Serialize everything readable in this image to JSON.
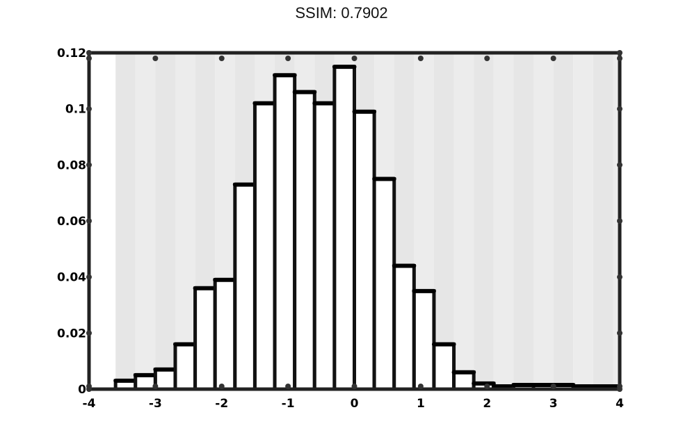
{
  "chart_data": {
    "type": "bar",
    "title": "SSIM: 0.7902",
    "xlabel": "",
    "ylabel": "",
    "xlim": [
      -4,
      4
    ],
    "ylim": [
      0,
      0.12
    ],
    "xticks": [
      -4,
      -3,
      -2,
      -1,
      0,
      1,
      2,
      3,
      4
    ],
    "yticks": [
      0,
      0.02,
      0.04,
      0.06,
      0.08,
      0.1,
      0.12
    ],
    "xtick_labels": [
      "-4",
      "-3",
      "-2",
      "-1",
      "0",
      "1",
      "2",
      "3",
      "4"
    ],
    "ytick_labels": [
      "0",
      "0.02",
      "0.04",
      "0.06",
      "0.08",
      "0.1",
      "0.12"
    ],
    "bin_edges": [
      -3.6,
      -3.3,
      -3.0,
      -2.7,
      -2.4,
      -2.1,
      -1.8,
      -1.5,
      -1.2,
      -0.9,
      -0.6,
      -0.3,
      0.0,
      0.3,
      0.6,
      0.9,
      1.2,
      1.5,
      1.8,
      2.1,
      2.4,
      2.7,
      3.0,
      3.3,
      3.6,
      3.9,
      4.0
    ],
    "values": [
      0.003,
      0.005,
      0.007,
      0.016,
      0.036,
      0.039,
      0.073,
      0.102,
      0.112,
      0.106,
      0.102,
      0.115,
      0.099,
      0.075,
      0.044,
      0.035,
      0.016,
      0.006,
      0.002,
      0.001,
      0.0015,
      0.0015,
      0.0015,
      0.001,
      0.001,
      0.001
    ]
  }
}
